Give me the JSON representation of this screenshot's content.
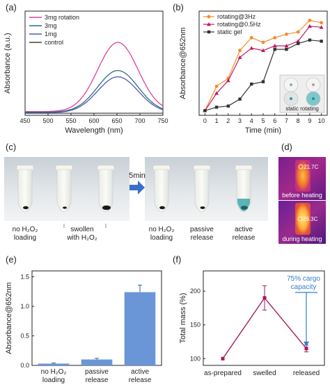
{
  "panel_labels": {
    "a": "(a)",
    "b": "(b)",
    "c": "(c)",
    "d": "(d)",
    "e": "(e)",
    "f": "(f)"
  },
  "chart_data": [
    {
      "id": "a",
      "type": "line",
      "xlabel": "Wavelength (nm)",
      "ylabel": "Absorbance (a.u.)",
      "xlim": [
        450,
        750
      ],
      "xticks": [
        450,
        500,
        550,
        600,
        650,
        700,
        750
      ],
      "ylim": [
        0,
        1
      ],
      "legend": "top-left",
      "series": [
        {
          "name": "3mg rotation",
          "color": "#e0409a",
          "peak": 0.7,
          "base": 0.035
        },
        {
          "name": "3mg",
          "color": "#2f6e7e",
          "peak": 0.43,
          "base": 0.03
        },
        {
          "name": "1mg",
          "color": "#4a58b8",
          "peak": 0.37,
          "base": 0.025
        },
        {
          "name": "control",
          "color": "#444444",
          "peak": 0.02,
          "base": 0.02
        }
      ],
      "peak_x": 652
    },
    {
      "id": "b",
      "type": "line",
      "xlabel": "Time (min)",
      "ylabel": "Absorbance@652nm",
      "xlim": [
        -0.5,
        10.5
      ],
      "xticks": [
        0,
        1,
        2,
        3,
        4,
        5,
        6,
        7,
        8,
        9,
        10
      ],
      "ylim": [
        0,
        0.9
      ],
      "legend": "top-left",
      "x": [
        0,
        1,
        2,
        3,
        4,
        5,
        6,
        7,
        8,
        9,
        10
      ],
      "series": [
        {
          "name": "rotating@3Hz",
          "color": "#f28c28",
          "marker": "circle",
          "values": [
            0.04,
            0.25,
            0.32,
            0.56,
            0.67,
            0.63,
            0.67,
            0.7,
            0.72,
            0.82,
            0.8
          ]
        },
        {
          "name": "rotating@0.5Hz",
          "color": "#c2185b",
          "marker": "triangle",
          "values": [
            0.04,
            0.19,
            0.3,
            0.5,
            0.58,
            0.56,
            0.6,
            0.6,
            0.64,
            0.77,
            0.76
          ]
        },
        {
          "name": "static gel",
          "color": "#333333",
          "marker": "square",
          "values": [
            0.04,
            0.07,
            0.08,
            0.14,
            0.27,
            0.29,
            0.57,
            0.57,
            0.62,
            0.65,
            0.64
          ]
        }
      ],
      "inset_label": "static rotating"
    },
    {
      "id": "e",
      "type": "bar",
      "ylabel": "Absorbance@652nm",
      "categories": [
        "no H2O2 loading",
        "passive release",
        "active release"
      ],
      "values": [
        0.03,
        0.1,
        1.24
      ],
      "errors": [
        0.01,
        0.02,
        0.12
      ],
      "ylim": [
        0,
        1.6
      ],
      "yticks": [
        0.0,
        0.5,
        1.0,
        1.5
      ],
      "color": "#6a96d8"
    },
    {
      "id": "f",
      "type": "line",
      "ylabel": "Total mass (%)",
      "categories": [
        "as-prepared",
        "swelled",
        "released"
      ],
      "values": [
        100,
        190,
        115
      ],
      "errors": [
        0,
        18,
        5
      ],
      "ylim": [
        90,
        230
      ],
      "yticks": [
        100,
        150,
        200
      ],
      "color": "#a4185b",
      "annotation": "75% cargo capacity"
    }
  ],
  "panel_c": {
    "time_label": "5min",
    "left_labels": [
      {
        "lines": [
          "no H₂O₂",
          "loading"
        ]
      },
      {
        "lines": [
          "swollen",
          "with H₂O₂"
        ]
      }
    ],
    "right_labels": [
      {
        "lines": [
          "no H₂O₂",
          "loading"
        ]
      },
      {
        "lines": [
          "passive",
          "release"
        ]
      },
      {
        "lines": [
          "active",
          "release"
        ]
      }
    ]
  },
  "panel_d": {
    "top_caption": "before heating",
    "top_temp": "21.7C",
    "bottom_caption": "during heating",
    "bottom_temp": "39.3C"
  },
  "panel_e_labels": [
    [
      "no H₂O₂",
      "loading"
    ],
    [
      "passive",
      "release"
    ],
    [
      "active",
      "release"
    ]
  ]
}
